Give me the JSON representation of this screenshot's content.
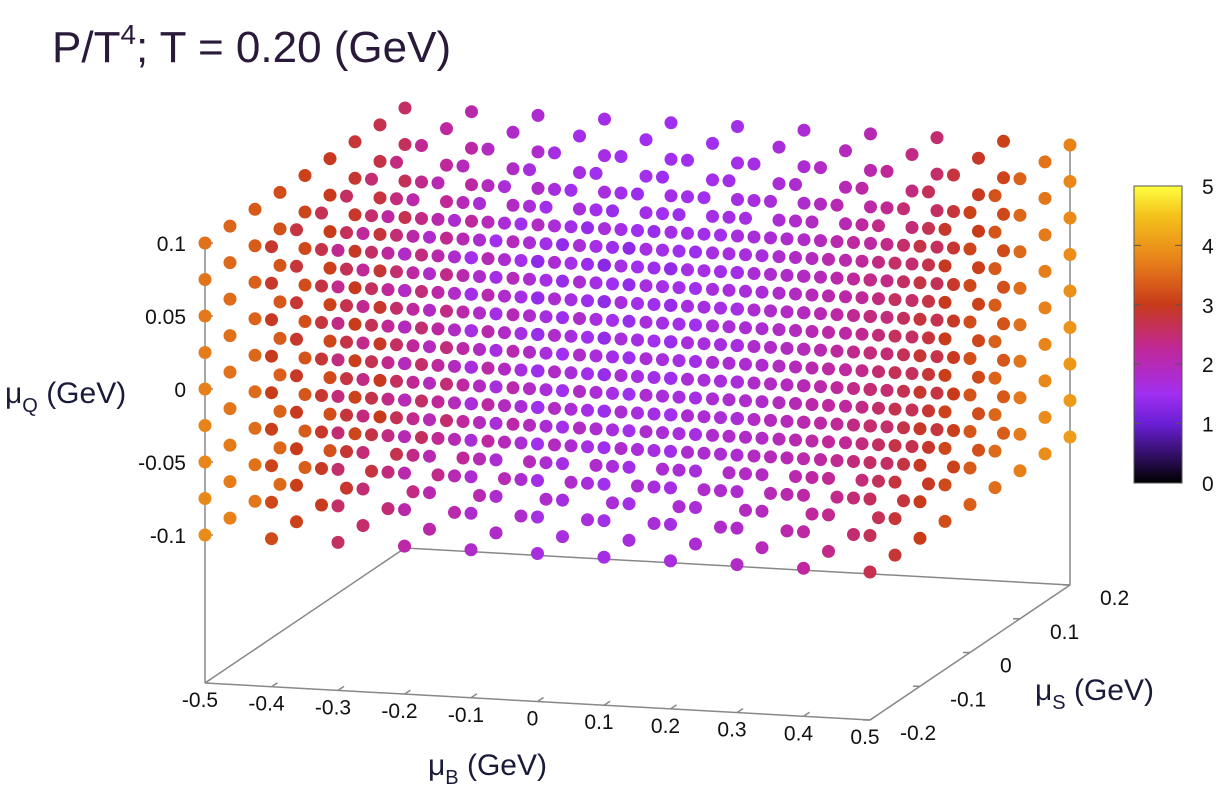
{
  "chart_data": {
    "type": "scatter",
    "title": {
      "main": "P/T",
      "sup": "4",
      "rest": "; T = 0.20 (GeV)"
    },
    "xlabel": {
      "sym": "μ",
      "sub": "B",
      "unit": " (GeV)"
    },
    "ylabel": {
      "sym": "μ",
      "sub": "S",
      "unit": " (GeV)"
    },
    "zlabel": {
      "sym": "μ",
      "sub": "Q",
      "unit": " (GeV)"
    },
    "x_ticks": [
      "-0.5",
      "-0.4",
      "-0.3",
      "-0.2",
      "-0.1",
      "0",
      "0.1",
      "0.2",
      "0.3",
      "0.4",
      "0.5"
    ],
    "y_ticks": [
      "-0.2",
      "-0.1",
      "0",
      "0.1",
      "0.2"
    ],
    "z_ticks": [
      "0.1",
      "0.05",
      "0",
      "-0.05",
      "-0.1"
    ],
    "xlim": [
      -0.5,
      0.5
    ],
    "ylim": [
      -0.2,
      0.2
    ],
    "zlim": [
      -0.1,
      0.1
    ],
    "colorbar": {
      "min": 0,
      "max": 5,
      "ticks": [
        "5",
        "4",
        "3",
        "2",
        "1",
        "0"
      ],
      "palette": [
        "#000000",
        "#6a1fd6",
        "#a12ff0",
        "#c0279a",
        "#c83a1a",
        "#e8811a",
        "#f4c21a",
        "#ffff40"
      ]
    },
    "grid": {
      "mu_B": [
        -0.5,
        -0.4,
        -0.3,
        -0.2,
        -0.1,
        0,
        0.1,
        0.2,
        0.3,
        0.4,
        0.5
      ],
      "mu_S": [
        -0.2,
        -0.15,
        -0.1,
        -0.05,
        0,
        0.05,
        0.1,
        0.15,
        0.2
      ],
      "mu_Q": [
        -0.1,
        -0.075,
        -0.05,
        -0.025,
        0,
        0.025,
        0.05,
        0.075,
        0.1
      ]
    },
    "value_model": "P/T^4 on the grid: 1.6 + 6.5*mu_B^2 + 0.5*mu_S - 1.5*mu_Q + 0.6*mu_B*mu_S/0.1 (range ≈ 1.5–4.1)"
  }
}
